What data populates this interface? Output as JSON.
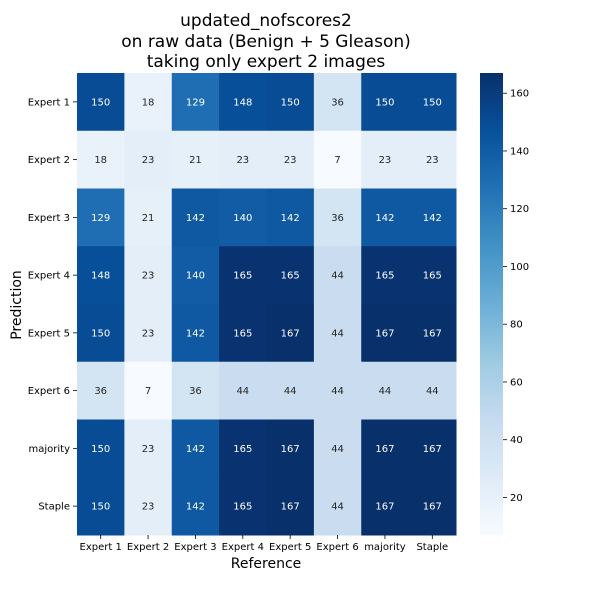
{
  "chart_data": {
    "type": "heatmap",
    "title_lines": [
      "updated_nofscores2",
      "on raw data (Benign + 5 Gleason)",
      "taking only expert 2 images"
    ],
    "xlabel": "Reference",
    "ylabel": "Prediction",
    "x_categories": [
      "Expert 1",
      "Expert 2",
      "Expert 3",
      "Expert 4",
      "Expert 5",
      "Expert 6",
      "majority",
      "Staple"
    ],
    "y_categories": [
      "Expert 1",
      "Expert 2",
      "Expert 3",
      "Expert 4",
      "Expert 5",
      "Expert 6",
      "majority",
      "Staple"
    ],
    "values": [
      [
        150,
        18,
        129,
        148,
        150,
        36,
        150,
        150
      ],
      [
        18,
        23,
        21,
        23,
        23,
        7,
        23,
        23
      ],
      [
        129,
        21,
        142,
        140,
        142,
        36,
        142,
        142
      ],
      [
        148,
        23,
        140,
        165,
        165,
        44,
        165,
        165
      ],
      [
        150,
        23,
        142,
        165,
        167,
        44,
        167,
        167
      ],
      [
        36,
        7,
        36,
        44,
        44,
        44,
        44,
        44
      ],
      [
        150,
        23,
        142,
        165,
        167,
        44,
        167,
        167
      ],
      [
        150,
        23,
        142,
        165,
        167,
        44,
        167,
        167
      ]
    ],
    "colormap": "Blues",
    "vmin": 7,
    "vmax": 167,
    "colorbar_ticks": [
      20,
      40,
      60,
      80,
      100,
      120,
      140,
      160
    ]
  }
}
